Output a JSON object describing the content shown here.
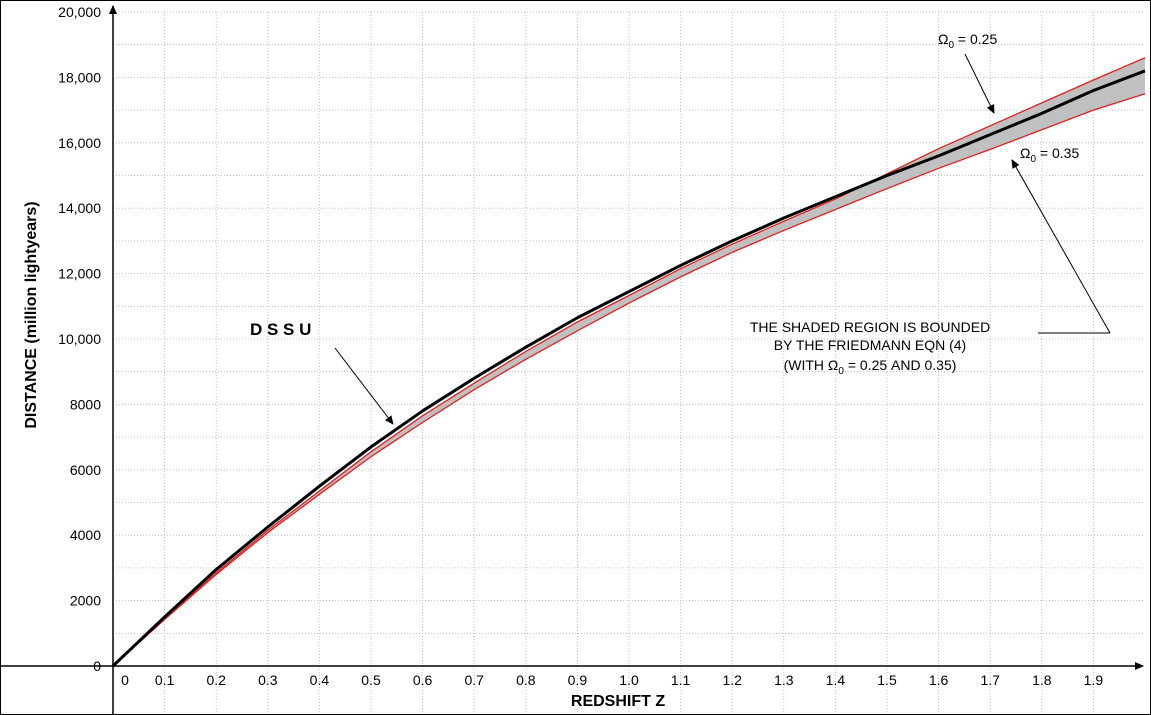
{
  "chart_data": {
    "type": "line",
    "title": "",
    "xlabel": "REDSHIFT  Z",
    "ylabel": "DISTANCE   (million lightyears)",
    "xlim": [
      0,
      2.0
    ],
    "ylim": [
      0,
      20000
    ],
    "grid": true,
    "x_ticks": [
      0,
      0.1,
      0.2,
      0.3,
      0.4,
      0.5,
      0.6,
      0.7,
      0.8,
      0.9,
      1.0,
      1.1,
      1.2,
      1.3,
      1.4,
      1.5,
      1.6,
      1.7,
      1.8,
      1.9
    ],
    "x_tick_labels": [
      "0",
      "0.1",
      "0.2",
      "0.3",
      "0.4",
      "0.5",
      "0.6",
      "0.7",
      "0.8",
      "0.9",
      "1.0",
      "1.1",
      "1.2",
      "1.3",
      "1.4",
      "1.5",
      "1.6",
      "1.7",
      "1.8",
      "1.9"
    ],
    "y_ticks": [
      0,
      2000,
      4000,
      6000,
      8000,
      10000,
      12000,
      14000,
      16000,
      18000,
      20000
    ],
    "y_tick_labels": [
      "0",
      "2000",
      "4000",
      "6000",
      "8000",
      "10,000",
      "12,000",
      "14,000",
      "16,000",
      "18,000",
      "20,000"
    ],
    "x": [
      0,
      0.1,
      0.2,
      0.3,
      0.4,
      0.5,
      0.6,
      0.7,
      0.8,
      0.9,
      1.0,
      1.1,
      1.2,
      1.3,
      1.4,
      1.5,
      1.6,
      1.7,
      1.8,
      1.9,
      2.0
    ],
    "series": [
      {
        "label_text": "D S S U",
        "color": "#000000",
        "values": [
          0,
          1500,
          2950,
          4250,
          5500,
          6700,
          7800,
          8800,
          9750,
          10650,
          11450,
          12250,
          13000,
          13700,
          14350,
          15000,
          15600,
          16250,
          16900,
          17600,
          18200
        ]
      },
      {
        "label_text": "0.25",
        "color": "#e02020",
        "values": [
          0,
          1450,
          2850,
          4150,
          5350,
          6550,
          7650,
          8650,
          9620,
          10520,
          11330,
          12150,
          12900,
          13600,
          14280,
          15050,
          15820,
          16520,
          17220,
          17920,
          18600
        ]
      },
      {
        "label_text": "0.35",
        "color": "#e02020",
        "values": [
          0,
          1420,
          2800,
          4080,
          5250,
          6400,
          7450,
          8450,
          9380,
          10250,
          11100,
          11900,
          12650,
          13320,
          13960,
          14600,
          15220,
          15800,
          16400,
          17000,
          17500
        ]
      }
    ],
    "shading": {
      "between": [
        "0.25",
        "0.35"
      ],
      "color": "#c0c0c0"
    },
    "annotations": {
      "dssu": "D S S U",
      "omega_symbol": "Ω",
      "omega_sub": "0",
      "omega_025_value": " = 0.25",
      "omega_035_value": " = 0.35",
      "note_line1": "THE SHADED REGION IS BOUNDED",
      "note_line2": "BY THE FRIEDMANN EQN (4)",
      "note_line3_pre": "(WITH ",
      "note_line3_post": " = 0.25 AND 0.35)"
    }
  }
}
